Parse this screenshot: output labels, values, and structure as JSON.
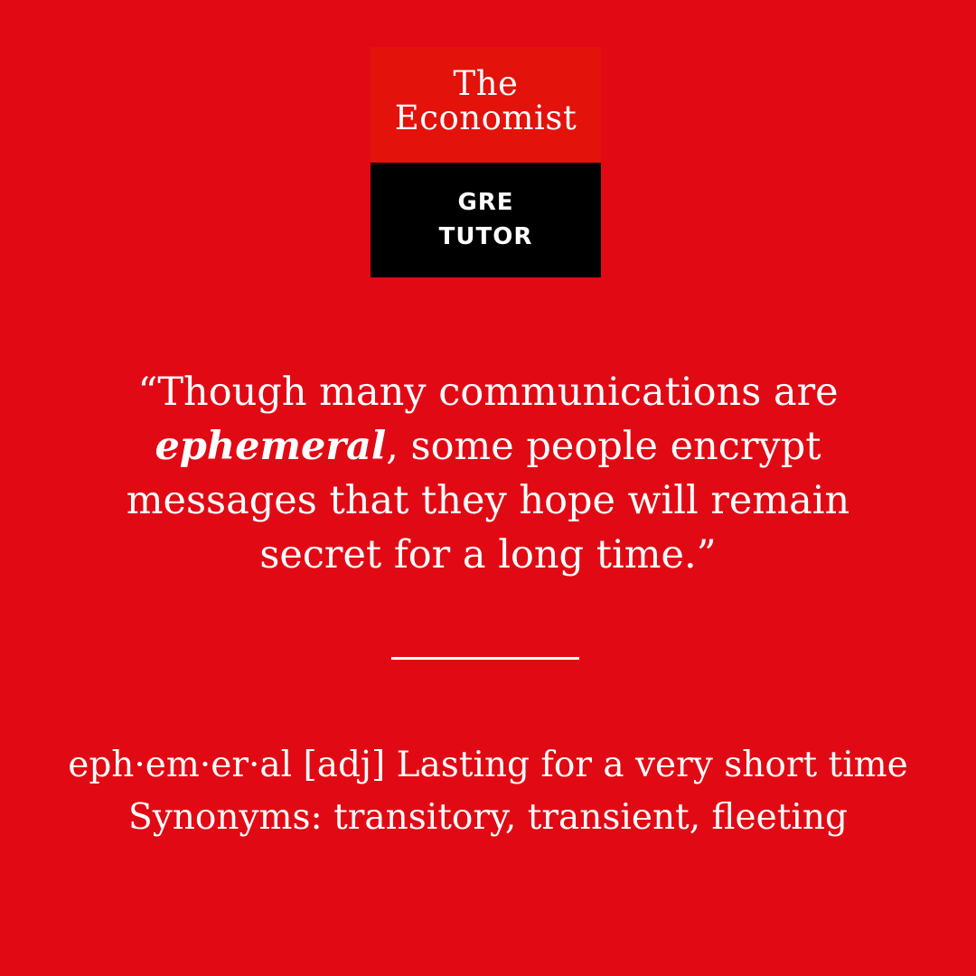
{
  "colors": {
    "background": "#E10A14",
    "logo_top": "#E3120B",
    "logo_bottom": "#000000",
    "text": "#FFFFFF"
  },
  "logo": {
    "line1": "The",
    "line2": "Economist",
    "tag_line1": "GRE",
    "tag_line2": "TUTOR"
  },
  "quote": {
    "line1": "“Though many communications are",
    "line2_word": "ephemeral",
    "line2_rest": ", some people encrypt",
    "line3": "messages that they hope will remain",
    "line4": "secret for a long time.”"
  },
  "definition": {
    "line1": "eph·em·er·al [adj] Lasting for a very short time",
    "line2": "Synonyms: transitory, transient, fleeting"
  }
}
